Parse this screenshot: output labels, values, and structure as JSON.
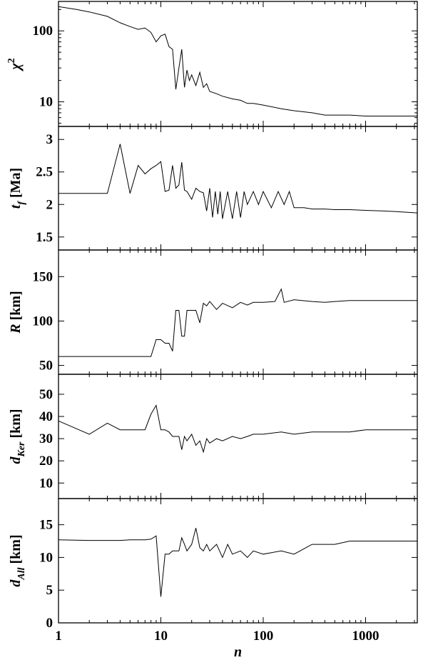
{
  "chart_data": [
    {
      "type": "line",
      "ylabel": "χ²",
      "ylabel_main": "χ",
      "ylabel_sup": "2",
      "ylabel_sub": "",
      "yscale": "log",
      "xscale": "log",
      "xlim": [
        1,
        3200
      ],
      "ylim": [
        4.5,
        260
      ],
      "yticks": [
        10,
        100
      ],
      "ytick_labels": [
        "10",
        "100"
      ],
      "series": [
        {
          "x": [
            1,
            1.5,
            2,
            3,
            4,
            5,
            6,
            7,
            8,
            9,
            10,
            11,
            12,
            13,
            14,
            15,
            16,
            17,
            18,
            19,
            20,
            22,
            24,
            26,
            28,
            30,
            35,
            40,
            50,
            60,
            70,
            80,
            100,
            150,
            200,
            300,
            400,
            500,
            700,
            1000,
            1500,
            2000,
            3200
          ],
          "y": [
            220,
            200,
            185,
            160,
            130,
            115,
            105,
            110,
            95,
            70,
            85,
            90,
            60,
            55,
            15,
            30,
            55,
            16,
            28,
            20,
            24,
            17,
            26,
            16,
            18,
            14,
            13,
            12,
            11,
            10.5,
            9.5,
            9.5,
            9,
            8,
            7.5,
            7,
            6.5,
            6.5,
            6.5,
            6.3,
            6.3,
            6.3,
            6.3
          ]
        }
      ]
    },
    {
      "type": "line",
      "ylabel": "t_f [Ma]",
      "ylabel_main": "t",
      "ylabel_sup": "",
      "ylabel_sub": "f",
      "ylabel_unit": " [Ma]",
      "yscale": "linear",
      "xscale": "log",
      "xlim": [
        1,
        3200
      ],
      "ylim": [
        1.3,
        3.2
      ],
      "yticks": [
        1.5,
        2,
        2.5,
        3
      ],
      "ytick_labels": [
        "1.5",
        "2",
        "2.5",
        "3"
      ],
      "series": [
        {
          "x": [
            1,
            2,
            3,
            4,
            5,
            6,
            7,
            8,
            9,
            10,
            11,
            12,
            13,
            14,
            15,
            16,
            17,
            18,
            20,
            22,
            24,
            26,
            28,
            30,
            32,
            34,
            36,
            38,
            40,
            45,
            50,
            55,
            60,
            65,
            70,
            80,
            90,
            100,
            120,
            140,
            160,
            180,
            200,
            220,
            250,
            300,
            400,
            500,
            700,
            1000,
            1500,
            2000,
            3200
          ],
          "y": [
            2.17,
            2.17,
            2.17,
            2.93,
            2.17,
            2.6,
            2.47,
            2.55,
            2.6,
            2.66,
            2.2,
            2.22,
            2.6,
            2.25,
            2.3,
            2.65,
            2.22,
            2.2,
            2.08,
            2.25,
            2.2,
            2.18,
            1.9,
            2.25,
            1.8,
            2.2,
            1.85,
            2.2,
            1.78,
            2.2,
            1.78,
            2.2,
            1.8,
            2.2,
            2.0,
            2.2,
            2.0,
            2.2,
            1.95,
            2.2,
            2.0,
            2.2,
            1.95,
            1.95,
            1.95,
            1.93,
            1.93,
            1.92,
            1.92,
            1.91,
            1.9,
            1.89,
            1.87
          ]
        }
      ]
    },
    {
      "type": "line",
      "ylabel": "R [km]",
      "ylabel_main": "R",
      "ylabel_sup": "",
      "ylabel_sub": "",
      "ylabel_unit": " [km]",
      "yscale": "linear",
      "xscale": "log",
      "xlim": [
        1,
        3200
      ],
      "ylim": [
        40,
        180
      ],
      "yticks": [
        50,
        100,
        150
      ],
      "ytick_labels": [
        "50",
        "100",
        "150"
      ],
      "series": [
        {
          "x": [
            1,
            2,
            3,
            4,
            5,
            6,
            7,
            8,
            9,
            10,
            11,
            12,
            13,
            14,
            15,
            16,
            17,
            18,
            20,
            22,
            24,
            26,
            28,
            30,
            35,
            40,
            50,
            60,
            70,
            80,
            100,
            130,
            150,
            160,
            200,
            300,
            400,
            500,
            700,
            1000,
            1500,
            2000,
            3200
          ],
          "y": [
            60,
            60,
            60,
            60,
            60,
            60,
            60,
            60,
            79,
            79,
            75,
            75,
            66,
            112,
            112,
            83,
            83,
            112,
            112,
            112,
            98,
            120,
            117,
            122,
            113,
            120,
            115,
            121,
            118,
            121,
            121,
            122,
            136,
            121,
            124,
            122,
            121,
            122,
            123,
            123,
            123,
            123,
            123
          ]
        }
      ]
    },
    {
      "type": "line",
      "ylabel": "d_Ker [km]",
      "ylabel_main": "d",
      "ylabel_sup": "",
      "ylabel_sub": "Ker",
      "ylabel_unit": " [km]",
      "yscale": "linear",
      "xscale": "log",
      "xlim": [
        1,
        3200
      ],
      "ylim": [
        3,
        59
      ],
      "yticks": [
        10,
        20,
        30,
        40,
        50
      ],
      "ytick_labels": [
        "10",
        "20",
        "30",
        "40",
        "50"
      ],
      "series": [
        {
          "x": [
            1,
            2,
            3,
            4,
            5,
            6,
            7,
            8,
            9,
            10,
            11,
            12,
            13,
            14,
            15,
            16,
            17,
            18,
            20,
            22,
            24,
            26,
            28,
            30,
            35,
            40,
            50,
            60,
            70,
            80,
            100,
            150,
            200,
            300,
            500,
            700,
            1000,
            1500,
            2000,
            3200
          ],
          "y": [
            38,
            32,
            37,
            34,
            34,
            34,
            34,
            41,
            45,
            34,
            34,
            33,
            31,
            31,
            31,
            25,
            31,
            29,
            32,
            27,
            29,
            24,
            30,
            28,
            30,
            29,
            31,
            30,
            31,
            32,
            32,
            33,
            32,
            33,
            33,
            33,
            34,
            34,
            34,
            34
          ]
        }
      ]
    },
    {
      "type": "line",
      "ylabel": "d_All [km]",
      "ylabel_main": "d",
      "ylabel_sup": "",
      "ylabel_sub": "All",
      "ylabel_unit": " [km]",
      "yscale": "linear",
      "xscale": "log",
      "xlim": [
        1,
        3200
      ],
      "ylim": [
        0,
        19
      ],
      "yticks": [
        0,
        5,
        10,
        15
      ],
      "ytick_labels": [
        "0",
        "5",
        "10",
        "15"
      ],
      "xlabel": "n",
      "xticks": [
        1,
        10,
        100,
        1000
      ],
      "xtick_labels": [
        "1",
        "10",
        "100",
        "1000"
      ],
      "series": [
        {
          "x": [
            1,
            2,
            3,
            4,
            5,
            6,
            7,
            8,
            9,
            10,
            11,
            12,
            13,
            14,
            15,
            16,
            17,
            18,
            20,
            22,
            24,
            26,
            28,
            30,
            35,
            40,
            45,
            50,
            60,
            70,
            80,
            100,
            150,
            200,
            300,
            500,
            700,
            1000,
            1500,
            2000,
            2500,
            3200
          ],
          "y": [
            12.7,
            12.6,
            12.6,
            12.6,
            12.7,
            12.7,
            12.7,
            12.8,
            13.3,
            4,
            10.5,
            10.5,
            11,
            11,
            11,
            13,
            12,
            11,
            12,
            14.5,
            11.5,
            11,
            12,
            11,
            12,
            10,
            12,
            10.5,
            11,
            10,
            11,
            10.5,
            11,
            10.5,
            12,
            12,
            12.5,
            12.5,
            12.5,
            12.5,
            12.5,
            12.5
          ]
        }
      ]
    }
  ]
}
